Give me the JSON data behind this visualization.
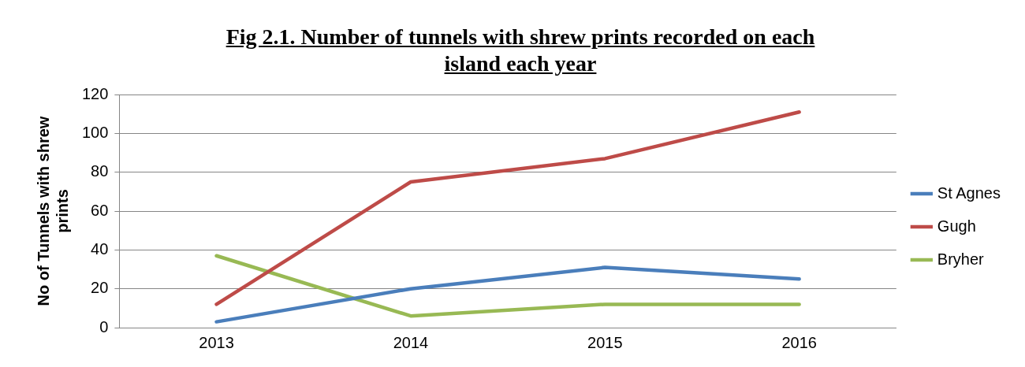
{
  "chart_data": {
    "type": "line",
    "title": "Fig 2.1. Number of tunnels with shrew prints recorded on each island each year",
    "ylabel": "No of Tunnels with shrew prints",
    "categories": [
      "2013",
      "2014",
      "2015",
      "2016"
    ],
    "series": [
      {
        "name": "St Agnes",
        "color": "#4a7ebb",
        "values": [
          3,
          20,
          31,
          25
        ]
      },
      {
        "name": "Gugh",
        "color": "#be4b48",
        "values": [
          12,
          75,
          87,
          111
        ]
      },
      {
        "name": "Bryher",
        "color": "#98b954",
        "values": [
          37,
          6,
          12,
          12
        ]
      }
    ],
    "ylim": [
      0,
      120
    ],
    "yticks": [
      0,
      20,
      40,
      60,
      80,
      100,
      120
    ],
    "grid": "y",
    "legend": "right",
    "marker": "none",
    "line_style": "solid"
  }
}
